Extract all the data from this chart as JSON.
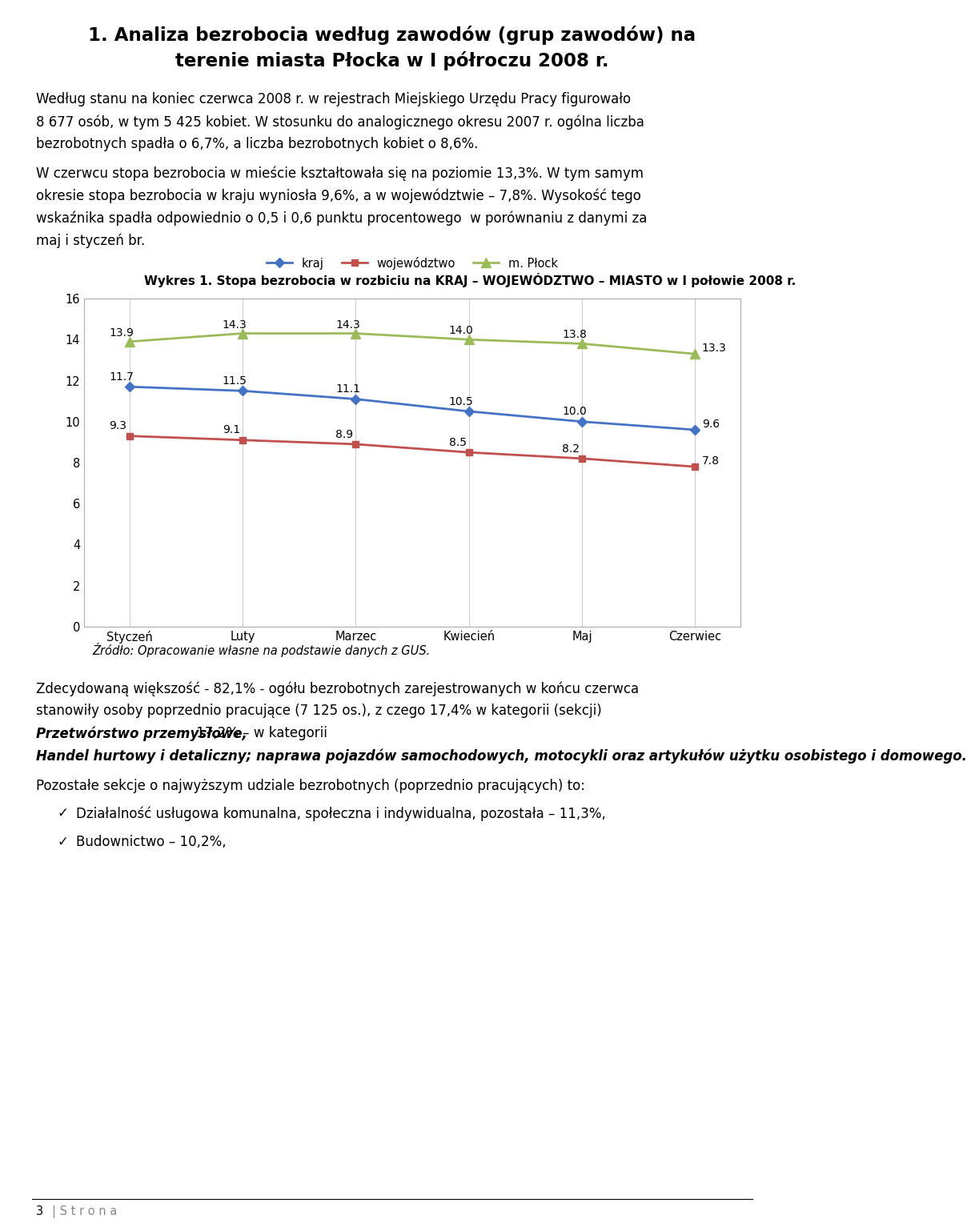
{
  "title_line1": "1. Analiza bezrobocia według zawodów (grup zawodów) na",
  "title_line2": "terenie miasta Płocka w I półroczu 2008 r.",
  "p1_line1": "Według stanu na koniec czerwca 2008 r. w rejestrach Miejskiego Urzędu Pracy figurowało",
  "p1_line2": "8 677 osób, w tym 5 425 kobiet. W stosunku do analogicznego okresu 2007 r. ogólna liczba",
  "p1_line3": "bezrobotnych spadła o 6,7%, a liczba bezrobotnych kobiet o 8,6%.",
  "p2_line1": "W czerwcu stopa bezrobocia w mieście kształtowała się na poziomie 13,3%. W tym samym",
  "p2_line2": "okresie stopa bezrobocia w kraju wyniosła 9,6%, a w województwie – 7,8%. Wysokość tego",
  "p2_line3": "wskaźnika spadła odpowiednio o 0,5 i 0,6 punktu procentowego  w porównaniu z danymi za",
  "p2_line4": "maj i styczeń br.",
  "chart_title": "Wykres 1. Stopa bezrobocia w rozbiciu na KRAJ – WOJEWÓDZTWO – MIASTO w I połowie 2008 r.",
  "months": [
    "Styczeń",
    "Luty",
    "Marzec",
    "Kwiecień",
    "Maj",
    "Czerwiec"
  ],
  "kraj": [
    11.7,
    11.5,
    11.1,
    10.5,
    10.0,
    9.6
  ],
  "wojewodztwo": [
    9.3,
    9.1,
    8.9,
    8.5,
    8.2,
    7.8
  ],
  "miasto": [
    13.9,
    14.3,
    14.3,
    14.0,
    13.8,
    13.3
  ],
  "kraj_color": "#4472C4",
  "woj_color": "#C0504D",
  "miasto_color": "#9BBB59",
  "source": "Źródło: Opracowanie własne na podstawie danych z GUS.",
  "p3_line1": "Zdecydowaną większość - 82,1% - ogółu bezrobotnych zarejestrowanych w końcu czerwca",
  "p3_line2": "stanowiły osoby poprzednio pracujące (7 125 os.), z czego 17,4% w kategorii (sekcji)",
  "p3_bold1": "Przetwórstwo przemysłowe,",
  "p3_mid": " 17,2% – w kategorii ",
  "p3_bold2_line1": "Handel hurtowy i detaliczny; naprawa pojazdów samochodowych, motocykli oraz artykułów użytku osobistego i domowego.",
  "p4": "Pozostałe sekcje o najwyższym udziale bezrobotnych (poprzednio pracujących) to:",
  "bullet1": "Działalność usługowa komunalna, społeczna i indywidualna, pozostała – 11,3%,",
  "bullet2": "Budownictwo – 10,2%,",
  "yticks": [
    0,
    2,
    4,
    6,
    8,
    10,
    12,
    14,
    16
  ]
}
